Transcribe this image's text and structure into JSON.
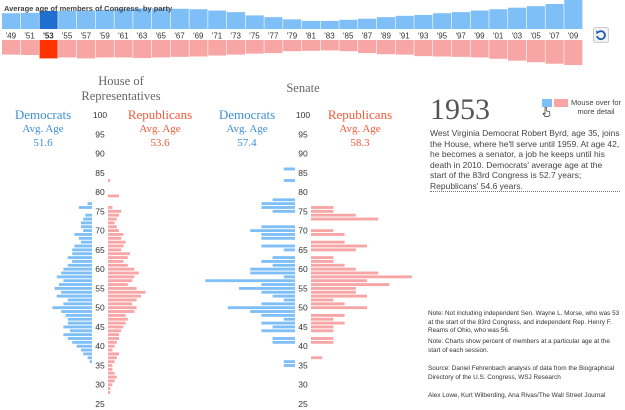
{
  "timeline": {
    "title": "Average age of members of Congress, by party",
    "years": [
      "'49",
      "'51",
      "'53",
      "'55",
      "'57",
      "'59",
      "'61",
      "'63",
      "'65",
      "'67",
      "'69",
      "'71",
      "'73",
      "'75",
      "'77",
      "'79",
      "'81",
      "'83",
      "'85",
      "'87",
      "'89",
      "'91",
      "'93",
      "'95",
      "'97",
      "'99",
      "'01",
      "'03",
      "'05",
      "'07",
      "'09"
    ],
    "selected_year": "'53",
    "dem_levels": [
      0.4,
      0.42,
      0.5,
      0.5,
      0.52,
      0.55,
      0.6,
      0.62,
      0.62,
      0.6,
      0.58,
      0.52,
      0.45,
      0.3,
      0.22,
      0.12,
      0.05,
      0.05,
      0.1,
      0.15,
      0.22,
      0.28,
      0.32,
      0.4,
      0.45,
      0.52,
      0.58,
      0.65,
      0.72,
      0.82,
      1.0
    ],
    "rep_levels": [
      0.4,
      0.42,
      0.6,
      0.55,
      0.6,
      0.55,
      0.55,
      0.58,
      0.55,
      0.52,
      0.5,
      0.45,
      0.4,
      0.35,
      0.32,
      0.22,
      0.2,
      0.18,
      0.22,
      0.32,
      0.38,
      0.4,
      0.48,
      0.5,
      0.52,
      0.55,
      0.62,
      0.72,
      0.8,
      0.88,
      0.95
    ],
    "refresh_icon": "refresh-icon"
  },
  "house": {
    "title": "House of Representatives",
    "dem": {
      "name": "Democrats",
      "sub": "Avg. Age",
      "value": "51.6"
    },
    "rep": {
      "name": "Republicans",
      "sub": "Avg. Age",
      "value": "53.6"
    }
  },
  "senate": {
    "title": "Senate",
    "dem": {
      "name": "Democrats",
      "sub": "Avg. Age",
      "value": "57.4"
    },
    "rep": {
      "name": "Republicans",
      "sub": "Avg. Age",
      "value": "58.3"
    }
  },
  "colors": {
    "dem": "#7fbff7",
    "rep": "#f8a5a5",
    "dem_selected": "#1f6fd1",
    "rep_selected": "#ff3300"
  },
  "chart_data": [
    {
      "type": "bar",
      "title": "House of Representatives",
      "y_ticks": [
        100,
        95,
        90,
        85,
        80,
        75,
        70,
        65,
        60,
        55,
        50,
        45,
        40,
        35,
        30,
        25
      ],
      "ylim": [
        25,
        100
      ],
      "series": [
        {
          "name": "Democrats",
          "ages": [
            77,
            76,
            74,
            73,
            72,
            71,
            70,
            69,
            68,
            67,
            66,
            65,
            64,
            63,
            62,
            61,
            60,
            59,
            58,
            57,
            56,
            55,
            54,
            53,
            52,
            51,
            50,
            49,
            48,
            47,
            46,
            45,
            44,
            43,
            42,
            41,
            40,
            39,
            38,
            37,
            36,
            35,
            34,
            33,
            32
          ],
          "values": [
            0.4,
            1.2,
            0.6,
            0.8,
            1.0,
            1.0,
            0.8,
            1.6,
            1.2,
            1.0,
            1.6,
            1.8,
            1.8,
            2.2,
            1.8,
            2.2,
            2.6,
            2.8,
            3.2,
            2.6,
            3.0,
            3.4,
            2.8,
            3.2,
            2.2,
            2.6,
            3.6,
            2.8,
            2.4,
            2.2,
            2.2,
            2.6,
            2.0,
            2.6,
            2.2,
            1.8,
            1.4,
            1.0,
            0.8,
            0.4,
            0.2,
            0.0,
            0.0,
            0.0,
            0.0
          ]
        },
        {
          "name": "Republicans",
          "ages": [
            83,
            79,
            76,
            75,
            74,
            73,
            72,
            71,
            70,
            69,
            68,
            67,
            66,
            65,
            64,
            63,
            62,
            61,
            60,
            59,
            58,
            57,
            56,
            55,
            54,
            53,
            52,
            51,
            50,
            49,
            48,
            47,
            46,
            45,
            44,
            43,
            42,
            41,
            40,
            39,
            38,
            37,
            36,
            35,
            34,
            33,
            32,
            31,
            30,
            29,
            28
          ],
          "values": [
            0.2,
            1.0,
            0.4,
            1.2,
            1.0,
            0.8,
            0.6,
            0.8,
            1.0,
            1.4,
            1.2,
            1.6,
            1.4,
            1.2,
            2.0,
            1.8,
            1.4,
            1.8,
            2.4,
            2.8,
            2.4,
            2.2,
            1.8,
            2.6,
            3.4,
            3.0,
            2.6,
            2.2,
            2.6,
            2.4,
            1.6,
            1.8,
            1.6,
            1.4,
            1.2,
            1.0,
            1.0,
            0.8,
            0.6,
            0.4,
            1.0,
            0.8,
            0.6,
            0.4,
            0.4,
            0.6,
            0.8,
            0.6,
            0.4,
            0.2,
            0.2
          ]
        }
      ]
    },
    {
      "type": "bar",
      "title": "Senate",
      "y_ticks": [
        100,
        95,
        90,
        85,
        80,
        75,
        70,
        65,
        60,
        55,
        50,
        45,
        40,
        35,
        30,
        25
      ],
      "ylim": [
        25,
        100
      ],
      "series": [
        {
          "name": "Democrats",
          "ages": [
            86,
            83,
            78,
            77,
            76,
            75,
            71,
            70,
            69,
            68,
            66,
            65,
            63,
            62,
            61,
            60,
            59,
            58,
            57,
            56,
            55,
            54,
            53,
            52,
            51,
            50,
            49,
            48,
            47,
            46,
            45,
            44,
            42,
            41,
            36,
            35
          ],
          "values": [
            1.0,
            1.0,
            2.0,
            3.0,
            3.0,
            2.0,
            3.0,
            4.0,
            3.0,
            3.0,
            3.0,
            1.0,
            2.0,
            3.0,
            2.0,
            4.0,
            4.0,
            1.0,
            8.0,
            3.0,
            5.0,
            3.0,
            2.0,
            1.0,
            3.0,
            6.0,
            4.0,
            3.0,
            1.0,
            3.0,
            2.0,
            3.0,
            2.0,
            2.0,
            1.0,
            1.0
          ]
        },
        {
          "name": "Republicans",
          "ages": [
            76,
            75,
            74,
            73,
            70,
            69,
            67,
            66,
            65,
            63,
            62,
            61,
            60,
            59,
            58,
            57,
            56,
            55,
            54,
            53,
            52,
            51,
            50,
            48,
            47,
            46,
            45,
            44,
            42,
            41,
            37
          ],
          "values": [
            2.0,
            2.0,
            4.0,
            6.0,
            2.0,
            3.0,
            3.0,
            5.0,
            4.0,
            2.0,
            2.0,
            3.0,
            4.0,
            6.0,
            9.0,
            5.0,
            7.0,
            4.0,
            4.0,
            5.0,
            2.0,
            3.0,
            5.0,
            3.0,
            2.0,
            3.0,
            2.0,
            2.0,
            2.0,
            2.0,
            1.0
          ]
        }
      ]
    }
  ],
  "info": {
    "year": "1953",
    "legend_text": "Mouse over for more detail",
    "cursor_icon": "hand-cursor-icon",
    "description": "West Virginia Democrat Robert Byrd, age 35, joins the House, where he'll serve until 1959. At age 42, he becomes a senator, a job he keeps until his death in 2010. Democrats' average age at the start of the 83rd Congress is 52.7 years; Republicans' 54.6 years."
  },
  "notes": {
    "note1": "Note: Not including independent Sen. Wayne L. Morse, who was 53 at the start of the 83rd Congress, and independent Rep. Henry F. Reams of Ohio, who was 56.",
    "note2": "Note: Charts show percent of members at a particular age at the start of each session.",
    "source": "Source: Daniel Fehrenbach analysis of data from the Biographical Directory of the U.S. Congress, WSJ Research",
    "credit": "Alex Lowe, Kurt Wilberding, Ana Rivas/The Wall Street Journal"
  }
}
